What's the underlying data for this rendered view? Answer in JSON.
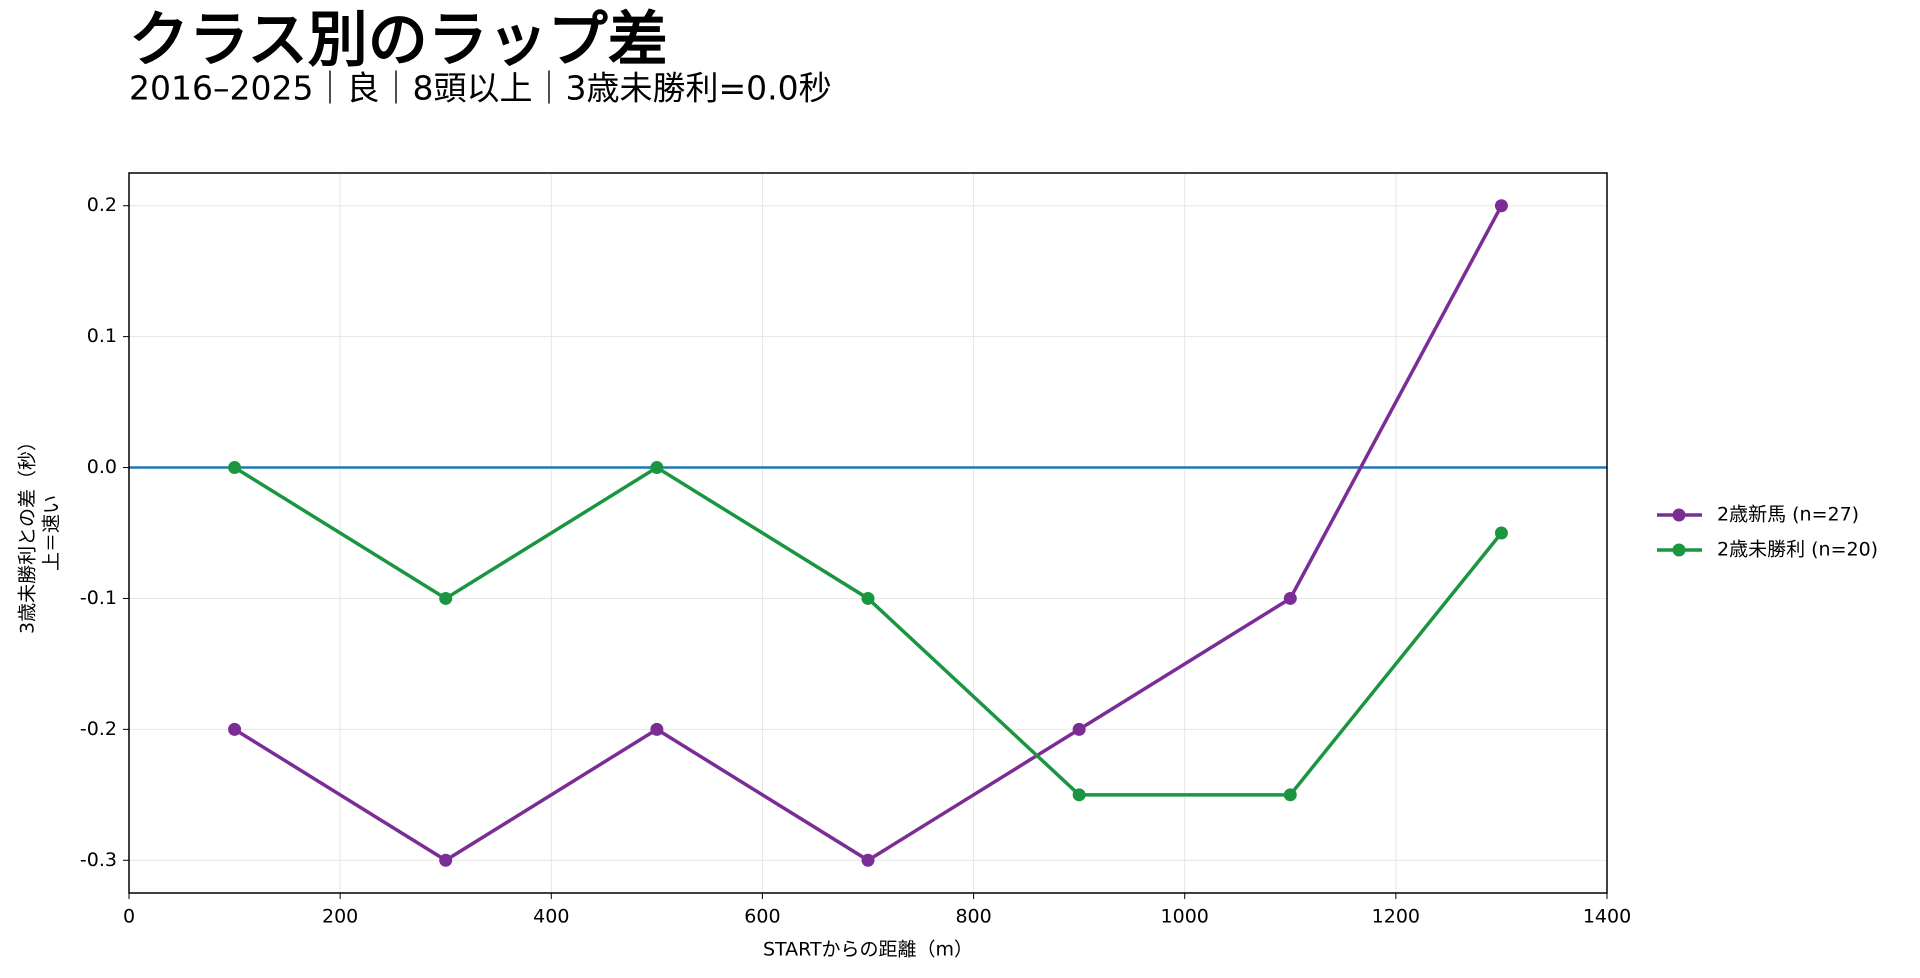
{
  "chart_data": {
    "type": "line",
    "title": "クラス別のラップ差",
    "subtitle": "2016–2025｜良｜8頭以上｜3歳未勝利=0.0秒",
    "x_label": "STARTからの距離（m）",
    "y_label": [
      "3歳未勝利との差（秒）",
      "上＝速い"
    ],
    "x": [
      100,
      300,
      500,
      700,
      900,
      1100,
      1300
    ],
    "series": [
      {
        "name": "2歳新馬 (n=27)",
        "color": "#7b2d96",
        "values": [
          -0.2,
          -0.3,
          -0.2,
          -0.3,
          -0.2,
          -0.1,
          0.2
        ]
      },
      {
        "name": "2歳未勝利 (n=20)",
        "color": "#1a9641",
        "values": [
          0,
          -0.1,
          0,
          -0.1,
          -0.25,
          -0.25,
          -0.05
        ]
      }
    ],
    "reference_line": {
      "y": 0,
      "color": "#1f77b4"
    },
    "xlim": [
      0,
      1400
    ],
    "xticks": [
      0,
      200,
      400,
      600,
      800,
      1000,
      1200,
      1400
    ],
    "ylim": [
      -0.325,
      0.225
    ],
    "yticks": [
      -0.3,
      -0.2,
      -0.1,
      {
        "value": 0,
        "label": "0.0"
      },
      0.1,
      0.2
    ],
    "grid": true,
    "legend": "right"
  }
}
